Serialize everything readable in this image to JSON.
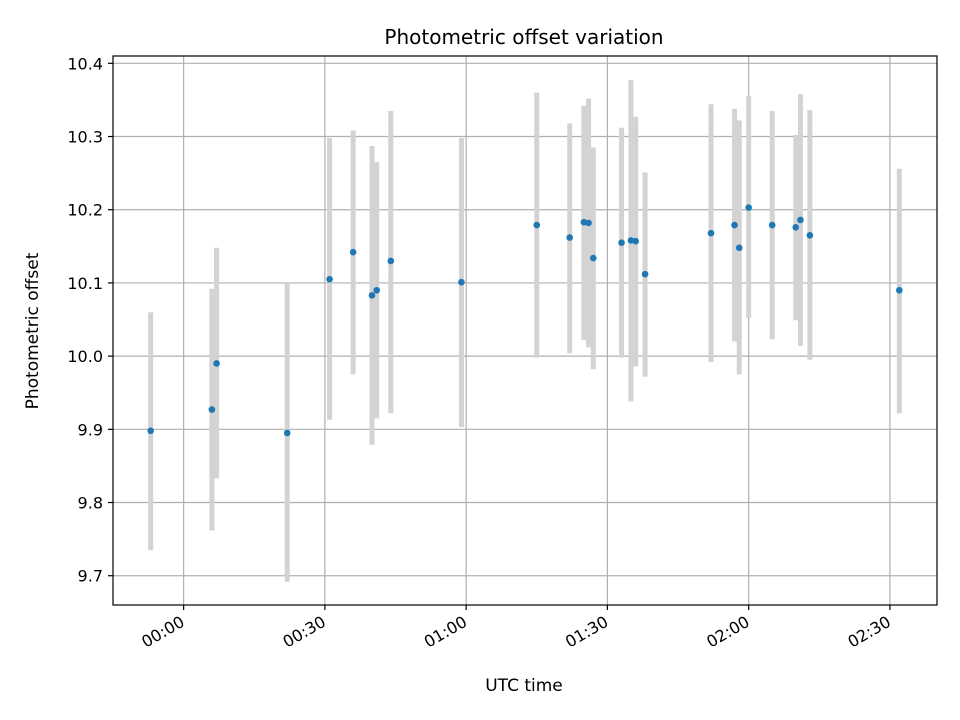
{
  "chart_data": {
    "type": "scatter",
    "title": "Photometric offset variation",
    "xlabel": "UTC time",
    "ylabel": "Photometric offset",
    "x_axis": {
      "min": "23:45",
      "max": "02:40",
      "ticks": [
        "00:00",
        "00:30",
        "01:00",
        "01:30",
        "02:00",
        "02:30"
      ]
    },
    "y_axis": {
      "min": 9.66,
      "max": 10.41,
      "ticks": [
        "9.7",
        "9.8",
        "9.9",
        "10.0",
        "10.1",
        "10.2",
        "10.3",
        "10.4"
      ]
    },
    "grid": true,
    "colors": {
      "point": "#1f77b4",
      "errorbar": "#d3d3d3",
      "grid": "#b0b0b0"
    },
    "points": [
      {
        "t": "23:53",
        "y": 9.898,
        "lo": 9.735,
        "hi": 10.06
      },
      {
        "t": "00:06",
        "y": 9.927,
        "lo": 9.762,
        "hi": 10.092
      },
      {
        "t": "00:07",
        "y": 9.99,
        "lo": 9.833,
        "hi": 10.148
      },
      {
        "t": "00:22",
        "y": 9.895,
        "lo": 9.692,
        "hi": 10.1
      },
      {
        "t": "00:31",
        "y": 10.105,
        "lo": 9.913,
        "hi": 10.298
      },
      {
        "t": "00:36",
        "y": 10.142,
        "lo": 9.975,
        "hi": 10.308
      },
      {
        "t": "00:40",
        "y": 10.083,
        "lo": 9.879,
        "hi": 10.287
      },
      {
        "t": "00:41",
        "y": 10.09,
        "lo": 9.915,
        "hi": 10.265
      },
      {
        "t": "00:44",
        "y": 10.13,
        "lo": 9.922,
        "hi": 10.335
      },
      {
        "t": "00:59",
        "y": 10.101,
        "lo": 9.903,
        "hi": 10.298
      },
      {
        "t": "01:15",
        "y": 10.179,
        "lo": 9.998,
        "hi": 10.36
      },
      {
        "t": "01:22",
        "y": 10.162,
        "lo": 10.004,
        "hi": 10.318
      },
      {
        "t": "01:25",
        "y": 10.183,
        "lo": 10.022,
        "hi": 10.342
      },
      {
        "t": "01:26",
        "y": 10.182,
        "lo": 10.012,
        "hi": 10.352
      },
      {
        "t": "01:27",
        "y": 10.134,
        "lo": 9.982,
        "hi": 10.285
      },
      {
        "t": "01:33",
        "y": 10.155,
        "lo": 9.998,
        "hi": 10.312
      },
      {
        "t": "01:35",
        "y": 10.158,
        "lo": 9.938,
        "hi": 10.377
      },
      {
        "t": "01:36",
        "y": 10.157,
        "lo": 9.986,
        "hi": 10.327
      },
      {
        "t": "01:38",
        "y": 10.112,
        "lo": 9.972,
        "hi": 10.251
      },
      {
        "t": "01:52",
        "y": 10.168,
        "lo": 9.992,
        "hi": 10.344
      },
      {
        "t": "01:57",
        "y": 10.179,
        "lo": 10.02,
        "hi": 10.338
      },
      {
        "t": "01:58",
        "y": 10.148,
        "lo": 9.975,
        "hi": 10.322
      },
      {
        "t": "02:00",
        "y": 10.203,
        "lo": 10.052,
        "hi": 10.355
      },
      {
        "t": "02:05",
        "y": 10.179,
        "lo": 10.023,
        "hi": 10.335
      },
      {
        "t": "02:10",
        "y": 10.176,
        "lo": 10.049,
        "hi": 10.302
      },
      {
        "t": "02:11",
        "y": 10.186,
        "lo": 10.014,
        "hi": 10.358
      },
      {
        "t": "02:13",
        "y": 10.165,
        "lo": 9.995,
        "hi": 10.336
      },
      {
        "t": "02:32",
        "y": 10.09,
        "lo": 9.922,
        "hi": 10.256
      }
    ]
  }
}
